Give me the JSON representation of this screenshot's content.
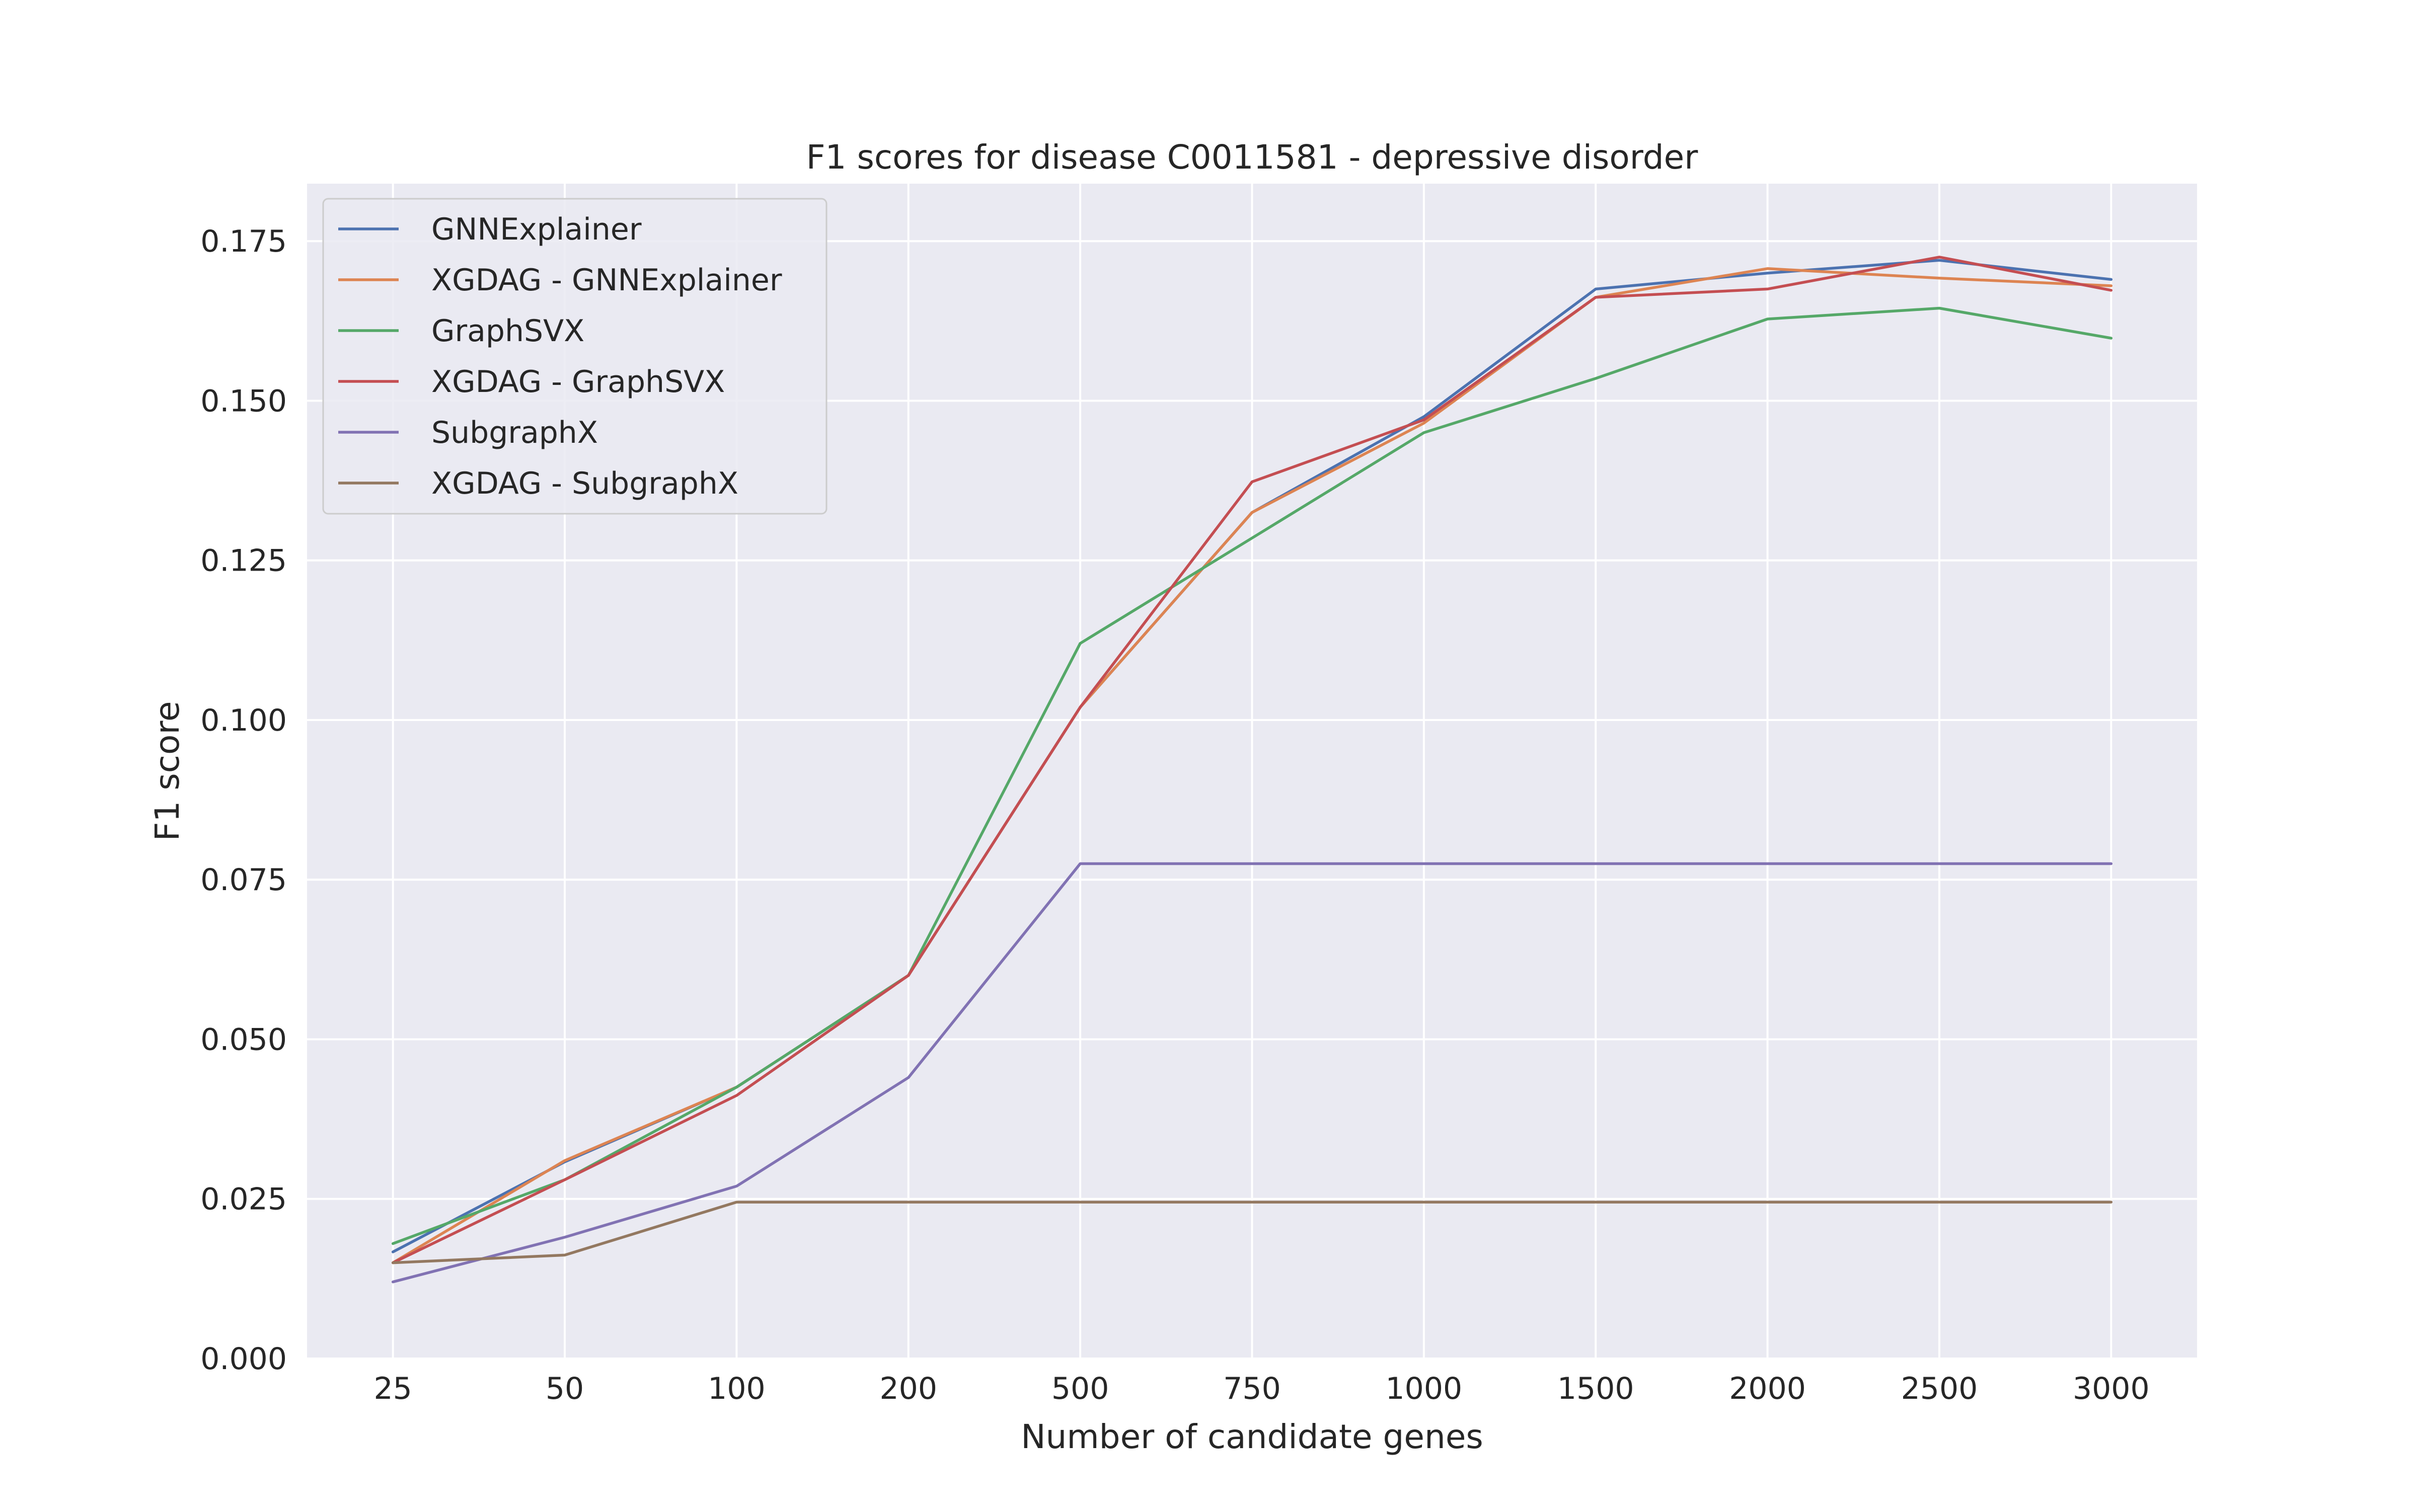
{
  "chart_data": {
    "type": "line",
    "title": "F1 scores for disease C0011581 - depressive disorder",
    "xlabel": "Number of candidate genes",
    "ylabel": "F1 score",
    "categories": [
      "25",
      "50",
      "100",
      "200",
      "500",
      "750",
      "1000",
      "1500",
      "2000",
      "2500",
      "3000"
    ],
    "ylim": [
      0,
      0.184
    ],
    "yticks": [
      "0.000",
      "0.025",
      "0.050",
      "0.075",
      "0.100",
      "0.125",
      "0.150",
      "0.175"
    ],
    "grid": true,
    "legend_position": "top-left",
    "background": "#eaeaf2",
    "series": [
      {
        "name": "GNNExplainer",
        "color": "#4c72b0",
        "values": [
          0.0167,
          0.0308,
          0.0425,
          0.06,
          0.102,
          0.1325,
          0.1475,
          0.1675,
          0.17,
          0.172,
          0.169
        ]
      },
      {
        "name": "XGDAG - GNNExplainer",
        "color": "#dd8452",
        "values": [
          0.015,
          0.031,
          0.0425,
          0.06,
          0.102,
          0.1325,
          0.1465,
          0.1662,
          0.1707,
          0.1692,
          0.168
        ]
      },
      {
        "name": "GraphSVX",
        "color": "#55a868",
        "values": [
          0.018,
          0.028,
          0.0425,
          0.06,
          0.112,
          0.1285,
          0.145,
          0.1535,
          0.1628,
          0.1645,
          0.1598
        ]
      },
      {
        "name": "XGDAG - GraphSVX",
        "color": "#c44e52",
        "values": [
          0.015,
          0.028,
          0.0412,
          0.06,
          0.102,
          0.1373,
          0.147,
          0.1662,
          0.1675,
          0.1725,
          0.1673
        ]
      },
      {
        "name": "SubgraphX",
        "color": "#8172b3",
        "values": [
          0.012,
          0.019,
          0.027,
          0.044,
          0.0775,
          0.0775,
          0.0775,
          0.0775,
          0.0775,
          0.0775,
          0.0775
        ]
      },
      {
        "name": "XGDAG - SubgraphX",
        "color": "#937860",
        "values": [
          0.015,
          0.0162,
          0.0245,
          0.0245,
          0.0245,
          0.0245,
          0.0245,
          0.0245,
          0.0245,
          0.0245,
          0.0245
        ]
      }
    ]
  }
}
